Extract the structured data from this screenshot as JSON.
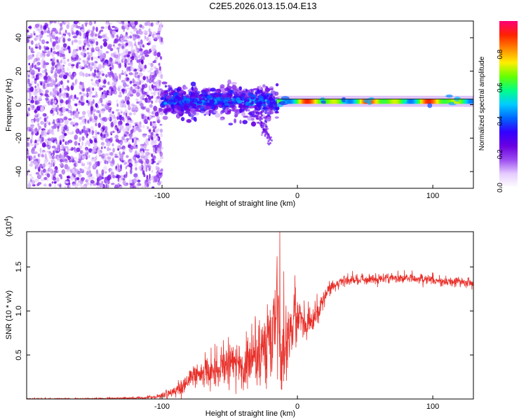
{
  "title": "C2E5.2026.013.15.04.E13",
  "colors": {
    "snr_line": "#e8302a",
    "axis": "#000000",
    "colormap": [
      "#ffffff",
      "#e6ccff",
      "#9b4cf0",
      "#6a00e0",
      "#3300ff",
      "#0066ff",
      "#00ccff",
      "#00ff88",
      "#66ff00",
      "#ffee00",
      "#ff8800",
      "#ff2200",
      "#ff0077"
    ]
  },
  "chart_data": [
    {
      "type": "heatmap",
      "xlabel": "Height of straight line (km)",
      "ylabel": "Frequency (Hz)",
      "xlim": [
        -200,
        130
      ],
      "ylim": [
        -50,
        50
      ],
      "xticks": [
        -100,
        0,
        100
      ],
      "xtick_labels": [
        "-100",
        "0",
        "100"
      ],
      "yticks": [
        -40,
        -20,
        0,
        20,
        40
      ],
      "ytick_labels": [
        "-40",
        "-20",
        "0",
        "20",
        "40"
      ],
      "colorbar": {
        "label": "Normalized spectral amplitude",
        "range": [
          0,
          1
        ],
        "ticks": [
          0.0,
          0.2,
          0.4,
          0.6,
          0.8
        ],
        "tick_labels": [
          "0.0",
          "0.2",
          "0.4",
          "0.6",
          "0.8"
        ]
      },
      "regions": [
        {
          "name": "noise",
          "x_range": [
            -200,
            -100
          ],
          "freq_range": [
            -50,
            50
          ],
          "amplitude": [
            0.0,
            0.2
          ]
        },
        {
          "name": "onset",
          "x_range": [
            -100,
            -15
          ],
          "freq_center": 2,
          "freq_spread": 8,
          "amplitude": [
            0.1,
            0.5
          ]
        },
        {
          "name": "tail",
          "x_range": [
            -30,
            -20
          ],
          "freq_start": -5,
          "freq_end": -22,
          "amplitude": [
            0.05,
            0.2
          ]
        },
        {
          "name": "carrier",
          "x_range": [
            -15,
            130
          ],
          "freq_center": 2,
          "freq_spread": 1.5,
          "amplitude": [
            0.4,
            0.95
          ]
        }
      ]
    },
    {
      "type": "line",
      "xlabel": "Height of straight line (km)",
      "ylabel": "SNR (10 * v/v)",
      "y_multiplier_label": "(x10",
      "y_multiplier_exp": "4",
      "y_multiplier_close": ")",
      "xlim": [
        -200,
        130
      ],
      "ylim": [
        0,
        1.9
      ],
      "xticks": [
        -100,
        0,
        100
      ],
      "xtick_labels": [
        "-100",
        "0",
        "100"
      ],
      "yticks": [
        0.5,
        1.0,
        1.5
      ],
      "ytick_labels": [
        "0.5",
        "1.0",
        "1.5"
      ],
      "series": [
        {
          "name": "SNR",
          "x": [
            -200,
            -160,
            -120,
            -105,
            -100,
            -95,
            -90,
            -85,
            -80,
            -75,
            -70,
            -65,
            -60,
            -55,
            -50,
            -45,
            -40,
            -35,
            -30,
            -25,
            -20,
            -17,
            -15,
            -13,
            -11,
            -9,
            -7,
            -5,
            -3,
            0,
            3,
            6,
            10,
            15,
            20,
            25,
            30,
            40,
            60,
            80,
            100,
            115,
            130
          ],
          "y": [
            0.0,
            0.0,
            0.01,
            0.02,
            0.04,
            0.07,
            0.1,
            0.14,
            0.2,
            0.26,
            0.3,
            0.33,
            0.35,
            0.38,
            0.4,
            0.44,
            0.33,
            0.4,
            0.5,
            0.55,
            0.6,
            0.8,
            1.0,
            0.7,
            0.6,
            0.65,
            0.7,
            0.8,
            0.9,
            1.0,
            0.95,
            0.8,
            0.9,
            1.0,
            1.15,
            1.28,
            1.32,
            1.35,
            1.37,
            1.38,
            1.36,
            1.33,
            1.32
          ],
          "noise": [
            0.005,
            0.005,
            0.008,
            0.01,
            0.02,
            0.03,
            0.04,
            0.05,
            0.06,
            0.08,
            0.09,
            0.1,
            0.11,
            0.12,
            0.12,
            0.13,
            0.12,
            0.15,
            0.18,
            0.2,
            0.22,
            0.3,
            0.45,
            0.3,
            0.25,
            0.22,
            0.22,
            0.2,
            0.18,
            0.15,
            0.12,
            0.1,
            0.1,
            0.08,
            0.06,
            0.04,
            0.035,
            0.03,
            0.03,
            0.03,
            0.03,
            0.03,
            0.03
          ],
          "peaks": [
            {
              "x": -13,
              "y": 1.9
            },
            {
              "x": -15,
              "y": 1.62
            },
            {
              "x": -10,
              "y": 1.45
            }
          ]
        }
      ]
    }
  ]
}
